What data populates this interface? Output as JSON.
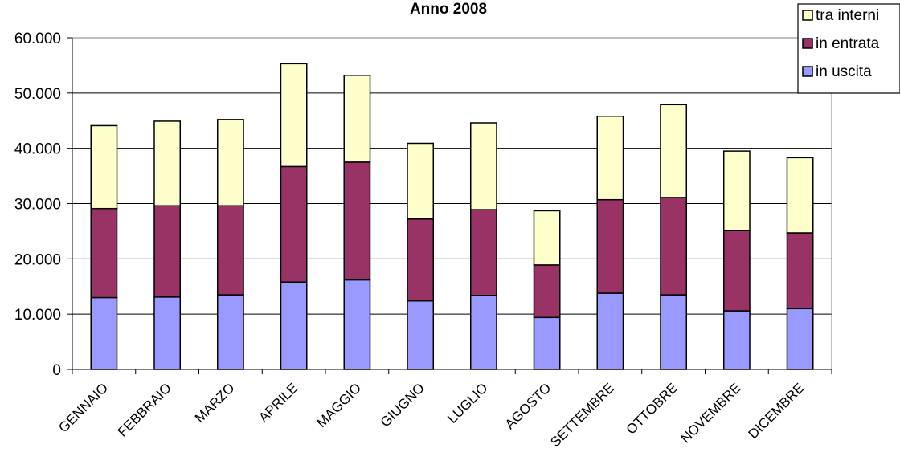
{
  "chart_data": {
    "type": "bar",
    "stacked": true,
    "title": "Anno 2008",
    "xlabel": "",
    "ylabel": "",
    "ylim": [
      0,
      60000
    ],
    "yticks": [
      0,
      10000,
      20000,
      30000,
      40000,
      50000,
      60000
    ],
    "ytick_labels": [
      "0",
      "10.000",
      "20.000",
      "30.000",
      "40.000",
      "50.000",
      "60.000"
    ],
    "grid": true,
    "legend_position": "top-right",
    "categories": [
      "GENNAIO",
      "FEBBRAIO",
      "MARZO",
      "APRILE",
      "MAGGIO",
      "GIUGNO",
      "LUGLIO",
      "AGOSTO",
      "SETTEMBRE",
      "OTTOBRE",
      "NOVEMBRE",
      "DICEMBRE"
    ],
    "series": [
      {
        "name": "in uscita",
        "color": "#9999ff",
        "values": [
          13000,
          13100,
          13500,
          15800,
          16200,
          12400,
          13400,
          9400,
          13800,
          13500,
          10600,
          11000
        ]
      },
      {
        "name": "in entrata",
        "color": "#993366",
        "values": [
          16100,
          16500,
          16100,
          20900,
          21300,
          14800,
          15500,
          9500,
          16900,
          17600,
          14500,
          13700
        ]
      },
      {
        "name": "tra interni",
        "color": "#ffffcc",
        "values": [
          15000,
          15300,
          15600,
          18600,
          15700,
          13700,
          15700,
          9800,
          15100,
          16800,
          14400,
          13600
        ]
      }
    ],
    "legend_order": [
      "tra interni",
      "in entrata",
      "in uscita"
    ]
  }
}
